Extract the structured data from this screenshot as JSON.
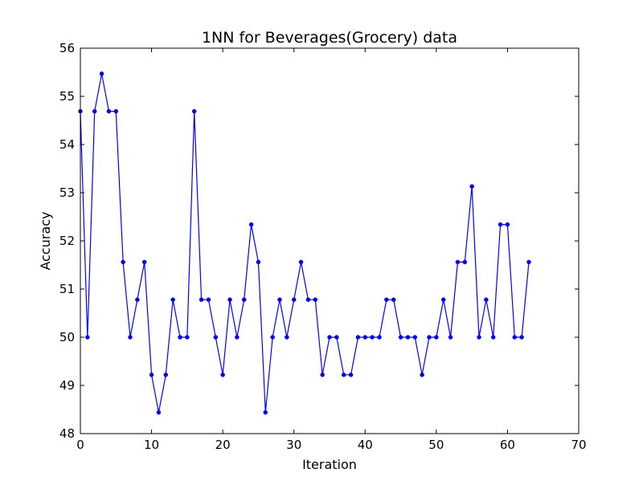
{
  "chart_data": {
    "type": "line",
    "title": "1NN for Beverages(Grocery) data",
    "xlabel": "Iteration",
    "ylabel": "Accuracy",
    "xlim": [
      0,
      70
    ],
    "ylim": [
      48,
      56
    ],
    "xticks": [
      0,
      10,
      20,
      30,
      40,
      50,
      60,
      70
    ],
    "yticks": [
      48,
      49,
      50,
      51,
      52,
      53,
      54,
      55,
      56
    ],
    "grid": false,
    "legend": "none",
    "line_color": "#0000ff",
    "marker": "circle",
    "series": [
      {
        "x": [
          0,
          1,
          2,
          3,
          4,
          5,
          6,
          7,
          8,
          9,
          10,
          11,
          12,
          13,
          14,
          15,
          16,
          17,
          18,
          19,
          20,
          21,
          22,
          23,
          24,
          25,
          26,
          27,
          28,
          29,
          30,
          31,
          32,
          33,
          34,
          35,
          36,
          37,
          38,
          39,
          40,
          41,
          42,
          43,
          44,
          45,
          46,
          47,
          48,
          49,
          50,
          51,
          52,
          53,
          54,
          55,
          56,
          57,
          58,
          59,
          60,
          61,
          62,
          63
        ],
        "values": [
          54.69,
          50.0,
          54.69,
          55.47,
          54.69,
          54.69,
          51.56,
          50.0,
          50.78,
          51.56,
          49.22,
          48.44,
          49.22,
          50.78,
          50.0,
          50.0,
          54.69,
          50.78,
          50.78,
          50.0,
          49.22,
          50.78,
          50.0,
          50.78,
          52.34,
          51.56,
          48.44,
          50.0,
          50.78,
          50.0,
          50.78,
          51.56,
          50.78,
          50.78,
          49.22,
          50.0,
          50.0,
          49.22,
          49.22,
          50.0,
          50.0,
          50.0,
          50.0,
          50.78,
          50.78,
          50.0,
          50.0,
          50.0,
          49.22,
          50.0,
          50.0,
          50.78,
          50.0,
          51.56,
          51.56,
          53.13,
          50.0,
          50.78,
          50.0,
          52.34,
          52.34,
          50.0,
          50.0,
          51.56
        ]
      }
    ]
  }
}
